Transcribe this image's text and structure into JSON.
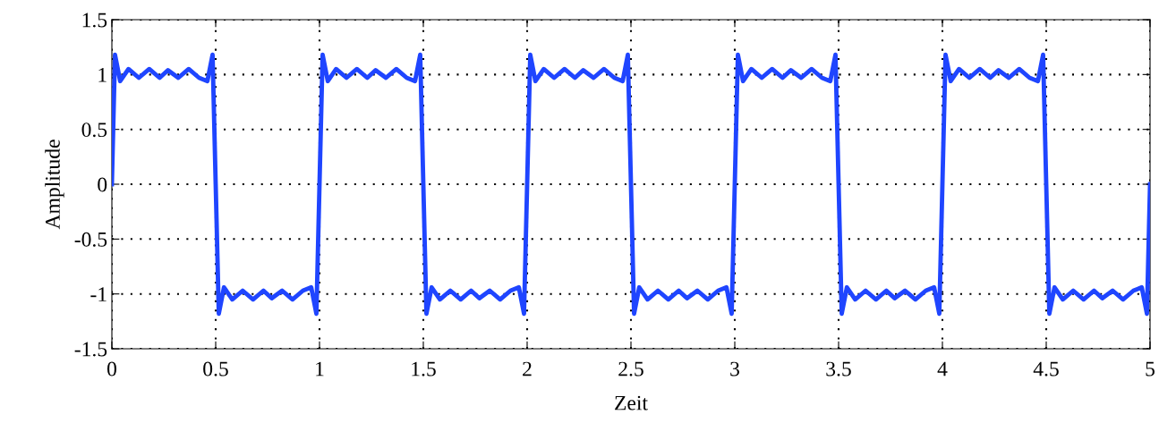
{
  "chart_data": {
    "type": "line",
    "xlabel": "Zeit",
    "ylabel": "Amplitude",
    "xlim": [
      0,
      5
    ],
    "ylim": [
      -1.5,
      1.5
    ],
    "xticks": [
      0,
      0.5,
      1,
      1.5,
      2,
      2.5,
      3,
      3.5,
      4,
      4.5,
      5
    ],
    "yticks": [
      -1.5,
      -1,
      -0.5,
      0,
      0.5,
      1,
      1.5
    ],
    "grid": true,
    "marker": "none",
    "line_style": "solid",
    "series": [
      {
        "color": "#1f45ff",
        "x": [
          0,
          0.015,
          0.04,
          0.08,
          0.13,
          0.18,
          0.23,
          0.27,
          0.32,
          0.37,
          0.42,
          0.46,
          0.485,
          0.5,
          0.515,
          0.54,
          0.58,
          0.63,
          0.68,
          0.73,
          0.77,
          0.82,
          0.87,
          0.92,
          0.96,
          0.985,
          1,
          1.015,
          1.04,
          1.08,
          1.13,
          1.18,
          1.23,
          1.27,
          1.32,
          1.37,
          1.42,
          1.46,
          1.485,
          1.5,
          1.515,
          1.54,
          1.58,
          1.63,
          1.68,
          1.73,
          1.77,
          1.82,
          1.87,
          1.92,
          1.96,
          1.985,
          2,
          2.015,
          2.04,
          2.08,
          2.13,
          2.18,
          2.23,
          2.27,
          2.32,
          2.37,
          2.42,
          2.46,
          2.485,
          2.5,
          2.515,
          2.54,
          2.58,
          2.63,
          2.68,
          2.73,
          2.77,
          2.82,
          2.87,
          2.92,
          2.96,
          2.985,
          3,
          3.015,
          3.04,
          3.08,
          3.13,
          3.18,
          3.23,
          3.27,
          3.32,
          3.37,
          3.42,
          3.46,
          3.485,
          3.5,
          3.515,
          3.54,
          3.58,
          3.63,
          3.68,
          3.73,
          3.77,
          3.82,
          3.87,
          3.92,
          3.96,
          3.985,
          4,
          4.015,
          4.04,
          4.08,
          4.13,
          4.18,
          4.23,
          4.27,
          4.32,
          4.37,
          4.42,
          4.46,
          4.485,
          4.5,
          4.515,
          4.54,
          4.58,
          4.63,
          4.68,
          4.73,
          4.77,
          4.82,
          4.87,
          4.92,
          4.96,
          4.985,
          5
        ],
        "values": [
          0,
          1.18,
          0.94,
          1.05,
          0.97,
          1.05,
          0.97,
          1.04,
          0.97,
          1.05,
          0.97,
          0.94,
          1.18,
          0,
          -1.18,
          -0.94,
          -1.05,
          -0.97,
          -1.05,
          -0.97,
          -1.04,
          -0.97,
          -1.05,
          -0.97,
          -0.94,
          -1.18,
          0,
          1.18,
          0.94,
          1.05,
          0.97,
          1.05,
          0.97,
          1.04,
          0.97,
          1.05,
          0.97,
          0.94,
          1.18,
          0,
          -1.18,
          -0.94,
          -1.05,
          -0.97,
          -1.05,
          -0.97,
          -1.04,
          -0.97,
          -1.05,
          -0.97,
          -0.94,
          -1.18,
          0,
          1.18,
          0.94,
          1.05,
          0.97,
          1.05,
          0.97,
          1.04,
          0.97,
          1.05,
          0.97,
          0.94,
          1.18,
          0,
          -1.18,
          -0.94,
          -1.05,
          -0.97,
          -1.05,
          -0.97,
          -1.04,
          -0.97,
          -1.05,
          -0.97,
          -0.94,
          -1.18,
          0,
          1.18,
          0.94,
          1.05,
          0.97,
          1.05,
          0.97,
          1.04,
          0.97,
          1.05,
          0.97,
          0.94,
          1.18,
          0,
          -1.18,
          -0.94,
          -1.05,
          -0.97,
          -1.05,
          -0.97,
          -1.04,
          -0.97,
          -1.05,
          -0.97,
          -0.94,
          -1.18,
          0,
          1.18,
          0.94,
          1.05,
          0.97,
          1.05,
          0.97,
          1.04,
          0.97,
          1.05,
          0.97,
          0.94,
          1.18,
          0,
          -1.18,
          -0.94,
          -1.05,
          -0.97,
          -1.05,
          -0.97,
          -1.04,
          -0.97,
          -1.05,
          -0.97,
          -0.94,
          -1.18,
          0
        ]
      }
    ]
  }
}
